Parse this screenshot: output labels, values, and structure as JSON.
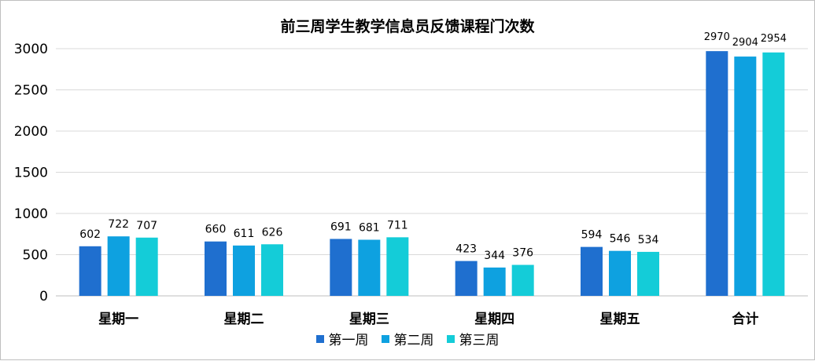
{
  "chart_data": {
    "type": "bar",
    "title": "前三周学生教学信息员反馈课程门次数",
    "categories": [
      "星期一",
      "星期二",
      "星期三",
      "星期四",
      "星期五",
      "合计"
    ],
    "series": [
      {
        "name": "第一周",
        "color": "#1f6fcf",
        "values": [
          602,
          660,
          691,
          423,
          594,
          2970
        ]
      },
      {
        "name": "第二周",
        "color": "#0ea1e0",
        "values": [
          722,
          611,
          681,
          344,
          546,
          2904
        ]
      },
      {
        "name": "第三周",
        "color": "#14ccd8",
        "values": [
          707,
          626,
          711,
          376,
          534,
          2954
        ]
      }
    ],
    "ylim": [
      0,
      3000
    ],
    "yticks": [
      0,
      500,
      1000,
      1500,
      2000,
      2500,
      3000
    ],
    "grid": true,
    "legend_position": "bottom"
  }
}
